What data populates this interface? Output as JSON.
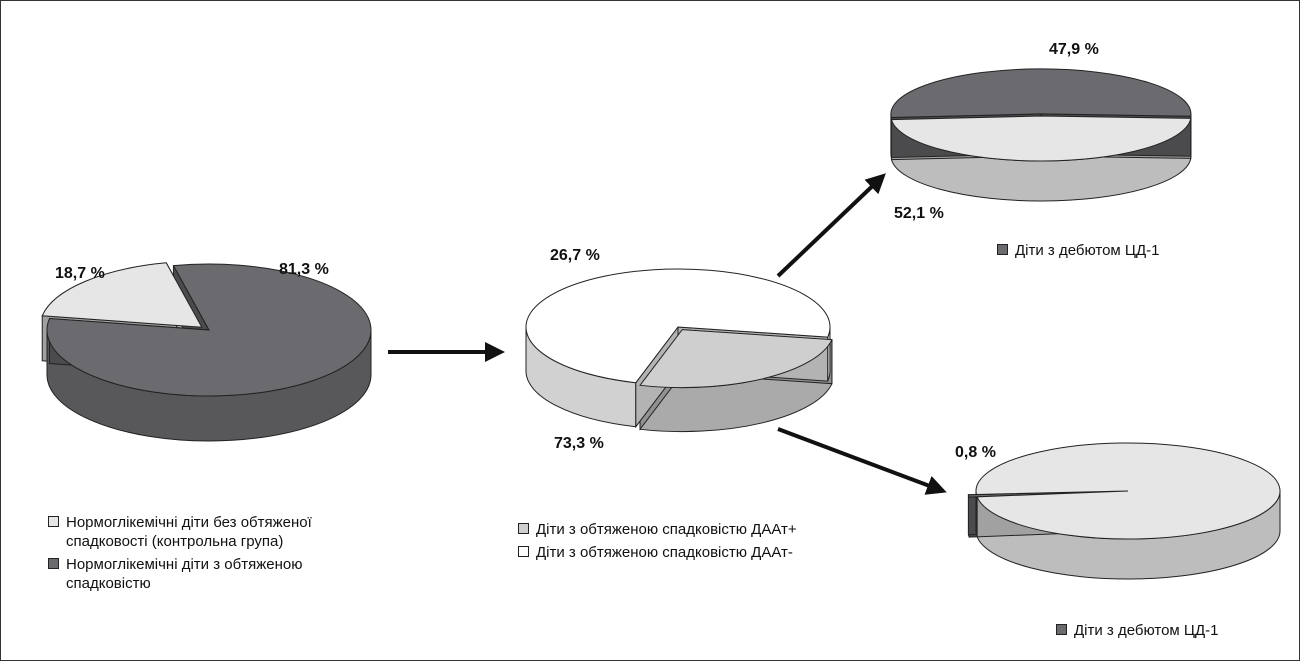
{
  "chart_data": [
    {
      "type": "pie",
      "slices": [
        {
          "label": "18,7 %",
          "value": 18.7,
          "color": "#e6e6e6"
        },
        {
          "label": "81,3 %",
          "value": 81.3,
          "color": "#6b6b6f"
        }
      ],
      "legend": [
        {
          "text": "Нормоглікемічні діти без обтяженої спадковості (контрольна група)",
          "color": "#e6e6e6"
        },
        {
          "text": "Нормоглікемічні діти з обтяженою спадковістю",
          "color": "#6b6b6f"
        }
      ]
    },
    {
      "type": "pie",
      "slices": [
        {
          "label": "26,7 %",
          "value": 26.7,
          "color": "#cfcfcf"
        },
        {
          "label": "73,3 %",
          "value": 73.3,
          "color": "#ffffff"
        }
      ],
      "legend": [
        {
          "text": "Діти з обтяженою спадковістю ДААт+",
          "color": "#cfcfcf"
        },
        {
          "text": "Діти з обтяженою спадковістю ДААт-",
          "color": "#ffffff"
        }
      ]
    },
    {
      "type": "pie",
      "slices": [
        {
          "label": "47,9 %",
          "value": 47.9,
          "color": "#e6e6e6"
        },
        {
          "label": "52,1 %",
          "value": 52.1,
          "color": "#6b6b6f"
        }
      ],
      "legend": [
        {
          "text": "Діти з дебютом ЦД-1",
          "color": "#6b6b6f"
        }
      ]
    },
    {
      "type": "pie",
      "slices": [
        {
          "label": "0,8 %",
          "value": 0.8,
          "color": "#6b6b6f"
        },
        {
          "label": "",
          "value": 99.2,
          "color": "#e6e6e6"
        }
      ],
      "legend": [
        {
          "text": "Діти з дебютом ЦД-1",
          "color": "#6b6b6f"
        }
      ]
    }
  ]
}
